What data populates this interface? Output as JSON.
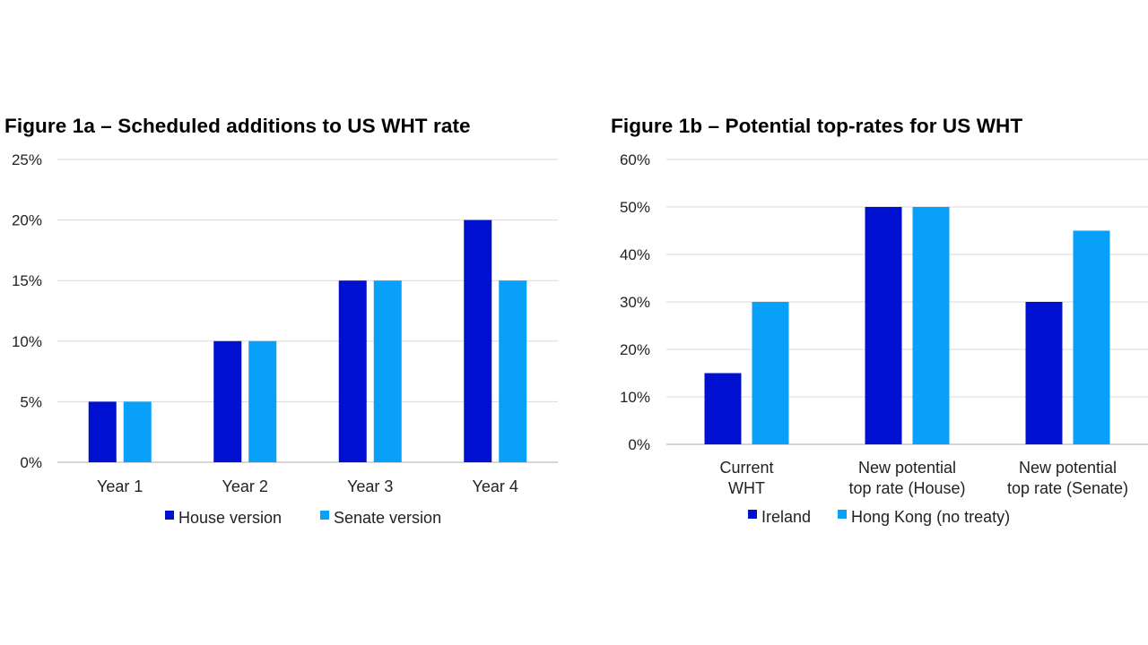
{
  "chart_data": [
    {
      "type": "bar",
      "title": "Figure 1a – Scheduled additions to US WHT rate",
      "categories": [
        "Year 1",
        "Year 2",
        "Year 3",
        "Year 4"
      ],
      "series": [
        {
          "name": "House version",
          "values": [
            5,
            10,
            15,
            20
          ],
          "color": "#0010D0"
        },
        {
          "name": "Senate version",
          "values": [
            5,
            10,
            15,
            15
          ],
          "color": "#08A0F8"
        }
      ],
      "ylim": [
        0,
        25
      ],
      "yticks": [
        0,
        5,
        10,
        15,
        20,
        25
      ],
      "tick_suffix": "%",
      "xlabel": "",
      "ylabel": "",
      "grid": true,
      "legend_position": "bottom"
    },
    {
      "type": "bar",
      "title": "Figure 1b – Potential top-rates for US WHT",
      "categories": [
        [
          "Current",
          "WHT"
        ],
        [
          "New potential",
          "top rate (House)"
        ],
        [
          "New potential",
          "top rate (Senate)"
        ]
      ],
      "series": [
        {
          "name": "Ireland",
          "values": [
            15,
            50,
            30
          ],
          "color": "#0010D0"
        },
        {
          "name": "Hong Kong (no treaty)",
          "values": [
            30,
            50,
            45
          ],
          "color": "#08A0F8"
        }
      ],
      "ylim": [
        0,
        60
      ],
      "yticks": [
        0,
        10,
        20,
        30,
        40,
        50,
        60
      ],
      "tick_suffix": "%",
      "xlabel": "",
      "ylabel": "",
      "grid": true,
      "legend_position": "bottom"
    }
  ]
}
